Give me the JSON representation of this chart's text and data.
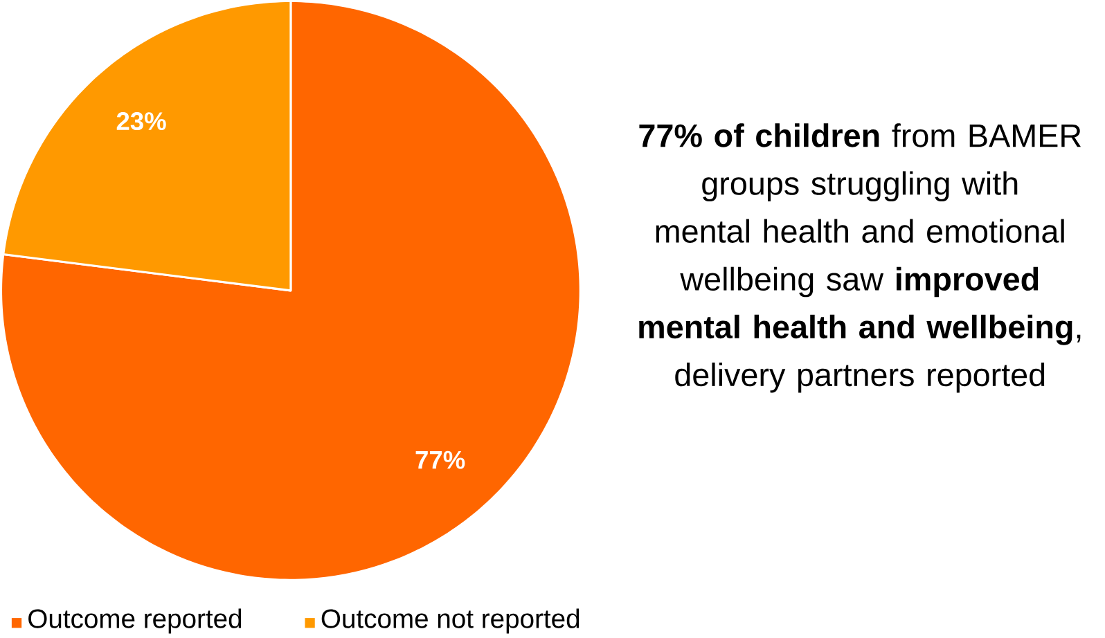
{
  "chart_data": {
    "type": "pie",
    "categories": [
      "Outcome reported",
      "Outcome not reported"
    ],
    "values": [
      77,
      23
    ],
    "colors": [
      "#ff6600",
      "#ff9900"
    ],
    "value_labels": [
      "77%",
      "23%"
    ],
    "legend": "bottom",
    "annotations": [
      "**77% of children**  from BAMER groups struggling with mental health and emotional wellbeing saw **improved mental health and wellbeing**, delivery partners reported"
    ]
  }
}
